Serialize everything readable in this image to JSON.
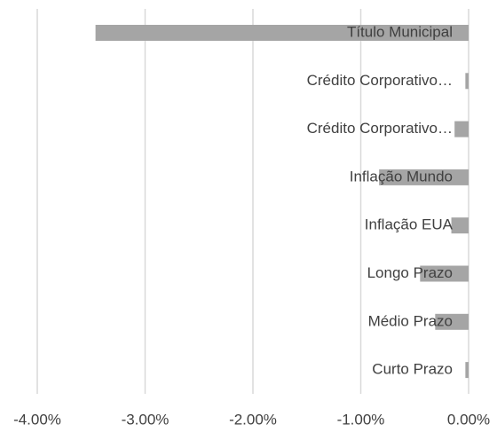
{
  "chart_data": {
    "type": "hbar",
    "categories": [
      "Título Municipal",
      "Crédito Corporativo…",
      "Crédito Corporativo…",
      "Inflação Mundo",
      "Inflação EUA",
      "Longo Prazo",
      "Médio Prazo",
      "Curto Prazo"
    ],
    "values": [
      -3.46,
      -0.03,
      -0.13,
      -0.83,
      -0.16,
      -0.45,
      -0.31,
      -0.03
    ],
    "color": "#a5a5a5",
    "xlim": [
      -4,
      0
    ],
    "xticks": [
      {
        "value": -4,
        "label": "-4.00%"
      },
      {
        "value": -3,
        "label": "-3.00%"
      },
      {
        "value": -2,
        "label": "-2.00%"
      },
      {
        "value": -1,
        "label": "-1.00%"
      },
      {
        "value": 0,
        "label": "0.00%"
      }
    ],
    "grid": true
  }
}
